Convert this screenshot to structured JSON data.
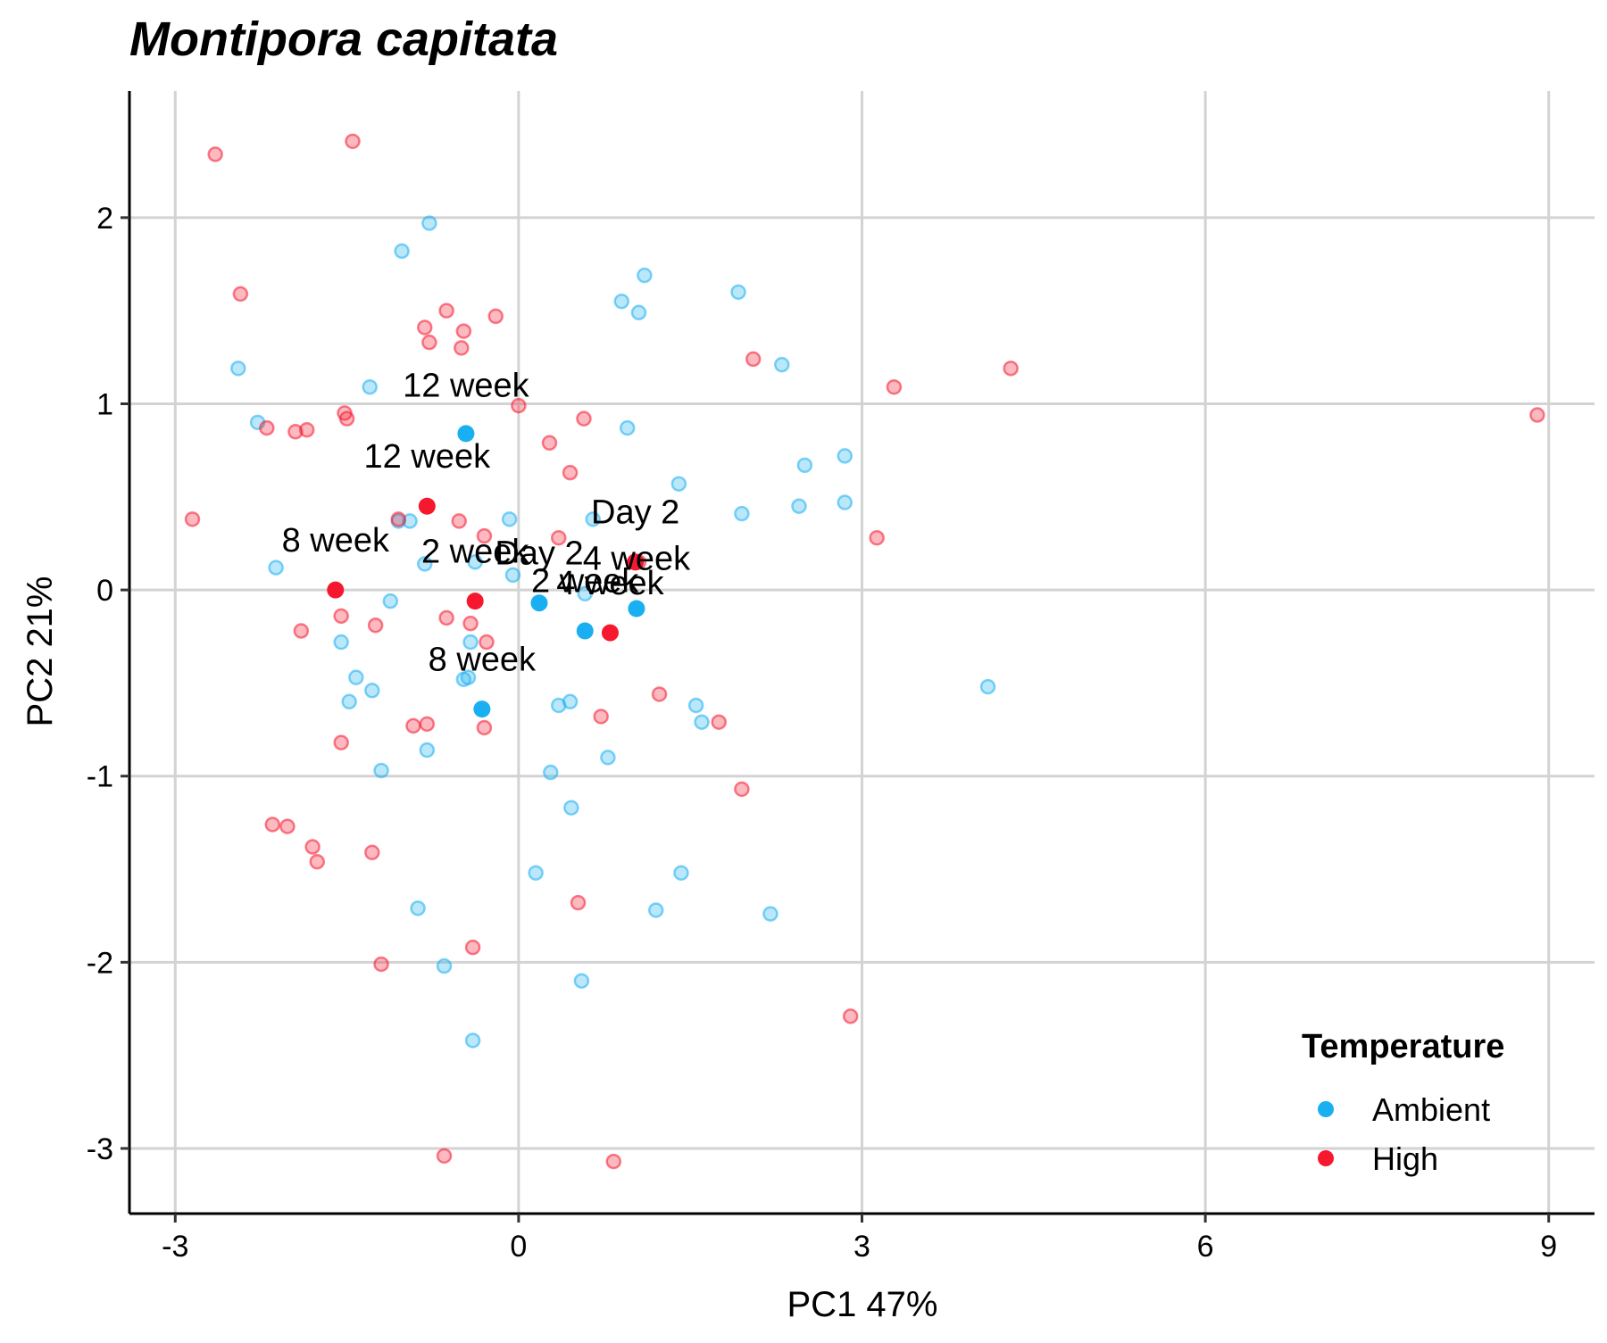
{
  "chart_data": {
    "type": "scatter",
    "title": "Montipora capitata",
    "xlabel": "PC1 47%",
    "ylabel": "PC2 21%",
    "xlim": [
      -3.4,
      9.4
    ],
    "ylim": [
      -3.35,
      2.68
    ],
    "xticks": [
      -3,
      0,
      3,
      6,
      9
    ],
    "xtick_labels": [
      "-3",
      "0",
      "3",
      "6",
      "9"
    ],
    "yticks": [
      -3,
      -2,
      -1,
      0,
      1,
      2
    ],
    "ytick_labels": [
      "-3",
      "-2",
      "-1",
      "0",
      "1",
      "2"
    ],
    "grid": true,
    "legend": {
      "title": "Temperature",
      "placement": "bottom-right",
      "items": [
        {
          "label": "Ambient",
          "color": "#1aaff0"
        },
        {
          "label": "High",
          "color": "#f5182e"
        }
      ]
    },
    "colors": {
      "Ambient": "#1aaff0",
      "High": "#f5182e"
    },
    "samples": [
      {
        "group": "Ambient",
        "points": [
          [
            -0.78,
            1.97
          ],
          [
            -1.02,
            1.82
          ],
          [
            1.1,
            1.69
          ],
          [
            0.9,
            1.55
          ],
          [
            1.05,
            1.49
          ],
          [
            1.92,
            1.6
          ],
          [
            2.3,
            1.21
          ],
          [
            -2.45,
            1.19
          ],
          [
            -1.3,
            1.09
          ],
          [
            -2.28,
            0.9
          ],
          [
            0.95,
            0.87
          ],
          [
            2.85,
            0.72
          ],
          [
            1.4,
            0.57
          ],
          [
            2.5,
            0.67
          ],
          [
            2.85,
            0.47
          ],
          [
            2.45,
            0.45
          ],
          [
            1.95,
            0.41
          ],
          [
            0.65,
            0.38
          ],
          [
            -0.08,
            0.38
          ],
          [
            -1.05,
            0.37
          ],
          [
            -0.95,
            0.37
          ],
          [
            -0.38,
            0.15
          ],
          [
            -0.05,
            0.08
          ],
          [
            -0.82,
            0.14
          ],
          [
            -2.12,
            0.12
          ],
          [
            0.58,
            -0.02
          ],
          [
            -1.12,
            -0.06
          ],
          [
            -1.55,
            -0.28
          ],
          [
            -0.42,
            -0.28
          ],
          [
            -1.42,
            -0.47
          ],
          [
            -1.28,
            -0.54
          ],
          [
            -0.48,
            -0.48
          ],
          [
            -0.44,
            -0.47
          ],
          [
            -1.48,
            -0.6
          ],
          [
            0.45,
            -0.6
          ],
          [
            0.35,
            -0.62
          ],
          [
            1.55,
            -0.62
          ],
          [
            1.6,
            -0.71
          ],
          [
            -0.8,
            -0.86
          ],
          [
            0.78,
            -0.9
          ],
          [
            -1.2,
            -0.97
          ],
          [
            0.28,
            -0.98
          ],
          [
            4.1,
            -0.52
          ],
          [
            0.46,
            -1.17
          ],
          [
            0.15,
            -1.52
          ],
          [
            1.42,
            -1.52
          ],
          [
            -0.88,
            -1.71
          ],
          [
            1.2,
            -1.72
          ],
          [
            2.2,
            -1.74
          ],
          [
            -0.65,
            -2.02
          ],
          [
            0.55,
            -2.1
          ],
          [
            -0.4,
            -2.42
          ]
        ]
      },
      {
        "group": "High",
        "points": [
          [
            -2.65,
            2.34
          ],
          [
            -1.45,
            2.41
          ],
          [
            -2.43,
            1.59
          ],
          [
            -0.63,
            1.5
          ],
          [
            -0.48,
            1.39
          ],
          [
            -0.82,
            1.41
          ],
          [
            -0.78,
            1.33
          ],
          [
            -0.5,
            1.3
          ],
          [
            -0.2,
            1.47
          ],
          [
            2.05,
            1.24
          ],
          [
            4.3,
            1.19
          ],
          [
            3.28,
            1.09
          ],
          [
            8.9,
            0.94
          ],
          [
            0.0,
            0.99
          ],
          [
            -1.52,
            0.95
          ],
          [
            -1.5,
            0.92
          ],
          [
            -2.2,
            0.87
          ],
          [
            -1.85,
            0.86
          ],
          [
            -1.95,
            0.85
          ],
          [
            0.57,
            0.92
          ],
          [
            0.27,
            0.79
          ],
          [
            0.45,
            0.63
          ],
          [
            -2.85,
            0.38
          ],
          [
            -1.05,
            0.38
          ],
          [
            -0.52,
            0.37
          ],
          [
            0.35,
            0.28
          ],
          [
            -0.3,
            0.29
          ],
          [
            3.13,
            0.28
          ],
          [
            1.05,
            0.15
          ],
          [
            -1.55,
            -0.14
          ],
          [
            -0.63,
            -0.15
          ],
          [
            -0.42,
            -0.18
          ],
          [
            -1.25,
            -0.19
          ],
          [
            -1.9,
            -0.22
          ],
          [
            -0.28,
            -0.28
          ],
          [
            1.23,
            -0.56
          ],
          [
            0.72,
            -0.68
          ],
          [
            1.75,
            -0.71
          ],
          [
            -0.92,
            -0.73
          ],
          [
            -0.8,
            -0.72
          ],
          [
            -0.3,
            -0.74
          ],
          [
            -1.55,
            -0.82
          ],
          [
            1.95,
            -1.07
          ],
          [
            -2.15,
            -1.26
          ],
          [
            -2.02,
            -1.27
          ],
          [
            -1.8,
            -1.38
          ],
          [
            -1.76,
            -1.46
          ],
          [
            -1.28,
            -1.41
          ],
          [
            0.52,
            -1.68
          ],
          [
            -0.4,
            -1.92
          ],
          [
            -1.2,
            -2.01
          ],
          [
            2.9,
            -2.29
          ],
          [
            -0.65,
            -3.04
          ],
          [
            0.83,
            -3.07
          ]
        ]
      }
    ],
    "centroids": [
      {
        "group": "Ambient",
        "label": "12 week",
        "x": -0.46,
        "y": 0.84,
        "label_x": -0.46,
        "label_y": 1.1
      },
      {
        "group": "High",
        "label": "12 week",
        "x": -0.8,
        "y": 0.45,
        "label_x": -0.8,
        "label_y": 0.72
      },
      {
        "group": "High",
        "label": "8 week",
        "x": -1.6,
        "y": 0.0,
        "label_x": -1.6,
        "label_y": 0.27
      },
      {
        "group": "High",
        "label": "2 week",
        "x": -0.38,
        "y": -0.06,
        "label_x": -0.38,
        "label_y": 0.21
      },
      {
        "group": "Ambient",
        "label": "Day 2",
        "x": 0.18,
        "y": -0.07,
        "label_x": 0.18,
        "label_y": 0.2
      },
      {
        "group": "High",
        "label": "Day 2",
        "x": 1.02,
        "y": 0.15,
        "label_x": 1.02,
        "label_y": 0.42
      },
      {
        "group": "High",
        "label": "4 week",
        "x": 0.8,
        "y": -0.23,
        "label_x": 0.8,
        "label_y": 0.04
      },
      {
        "group": "Ambient",
        "label": "4 week",
        "x": 1.03,
        "y": -0.1,
        "label_x": 1.03,
        "label_y": 0.17
      },
      {
        "group": "Ambient",
        "label": "2 week",
        "x": 0.58,
        "y": -0.22,
        "label_x": 0.58,
        "label_y": 0.05
      },
      {
        "group": "Ambient",
        "label": "8 week",
        "x": -0.32,
        "y": -0.64,
        "label_x": -0.32,
        "label_y": -0.37
      }
    ]
  }
}
